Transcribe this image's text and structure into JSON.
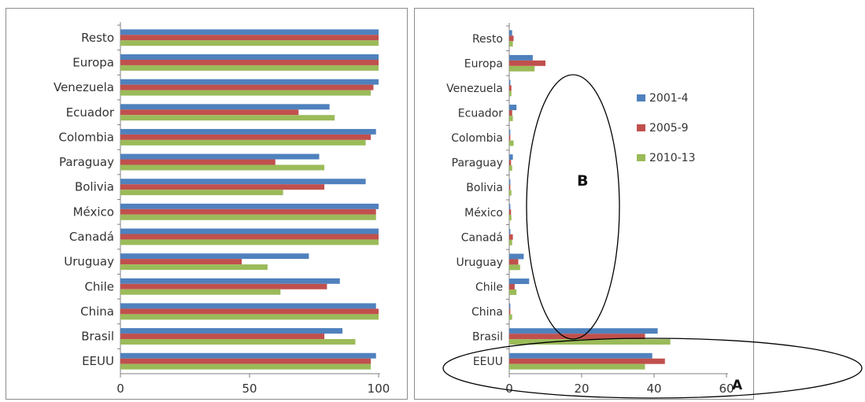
{
  "chart_data": [
    {
      "type": "bar",
      "orientation": "horizontal",
      "title": "",
      "categories": [
        "Resto",
        "Europa",
        "Venezuela",
        "Ecuador",
        "Colombia",
        "Paraguay",
        "Bolivia",
        "México",
        "Canadá",
        "Uruguay",
        "Chile",
        "China",
        "Brasil",
        "EEUU"
      ],
      "series": [
        {
          "name": "2001-4",
          "color": "#4f81bd",
          "values": [
            100,
            100,
            100,
            81,
            99,
            77,
            95,
            100,
            100,
            73,
            85,
            99,
            86,
            99
          ]
        },
        {
          "name": "2005-9",
          "color": "#c0504d",
          "values": [
            100,
            100,
            98,
            69,
            97,
            60,
            79,
            99,
            100,
            47,
            80,
            100,
            79,
            97
          ]
        },
        {
          "name": "2010-13",
          "color": "#9bbb59",
          "values": [
            100,
            100,
            97,
            83,
            95,
            79,
            63,
            99,
            100,
            57,
            62,
            100,
            91,
            97
          ]
        }
      ],
      "xlim": [
        0,
        100
      ],
      "xticks": [
        0,
        50,
        100
      ],
      "grid": false,
      "legend": "none"
    },
    {
      "type": "bar",
      "orientation": "horizontal",
      "title": "",
      "categories": [
        "Resto",
        "Europa",
        "Venezuela",
        "Ecuador",
        "Colombia",
        "Paraguay",
        "Bolivia",
        "México",
        "Canadá",
        "Uruguay",
        "Chile",
        "China",
        "Brasil",
        "EEUU"
      ],
      "series": [
        {
          "name": "2001-4",
          "color": "#4f81bd",
          "values": [
            0.8,
            6.5,
            0.3,
            2,
            0.3,
            1,
            0.3,
            0.3,
            0.3,
            4,
            5.5,
            0.3,
            41,
            39.5
          ]
        },
        {
          "name": "2005-9",
          "color": "#c0504d",
          "values": [
            1.2,
            10,
            0.6,
            0.8,
            0.3,
            0.5,
            0.3,
            0.5,
            1,
            2.5,
            1.5,
            0.3,
            37.5,
            43
          ]
        },
        {
          "name": "2010-13",
          "color": "#9bbb59",
          "values": [
            1,
            7,
            0.6,
            1,
            1.2,
            0.8,
            0.6,
            0.6,
            0.8,
            3,
            2,
            0.8,
            44.5,
            37.5
          ]
        }
      ],
      "xlim": [
        0,
        60
      ],
      "xticks": [
        0,
        20,
        40,
        60
      ],
      "grid": false,
      "legend": "right",
      "annotations": [
        "B",
        "A"
      ]
    }
  ]
}
